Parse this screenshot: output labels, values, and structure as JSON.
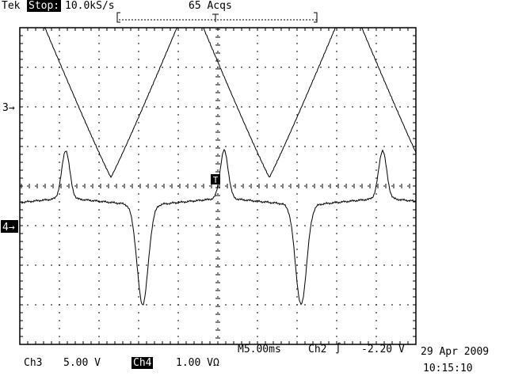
{
  "header": {
    "brand": "Tek",
    "run_state": "Stop:",
    "sample_rate": "10.0kS/s",
    "acquisitions": "65 Acqs"
  },
  "markers": {
    "ch3_ref": "3→",
    "ch4_ref": "4→",
    "trigger_mark": "T"
  },
  "footer": {
    "ch3_label": "Ch3",
    "ch3_scale": "5.00 V",
    "ch4_label": "Ch4",
    "ch4_scale": "1.00 VΩ",
    "timebase": "M5.00ms",
    "trigger_source": "Ch2",
    "trigger_slope": "∫",
    "trigger_level": "-2.20 V",
    "date": "29 Apr 2009",
    "time": "10:15:10"
  },
  "colors": {
    "background": "#ffffff",
    "trace": "#000000",
    "grid": "#000000"
  }
}
